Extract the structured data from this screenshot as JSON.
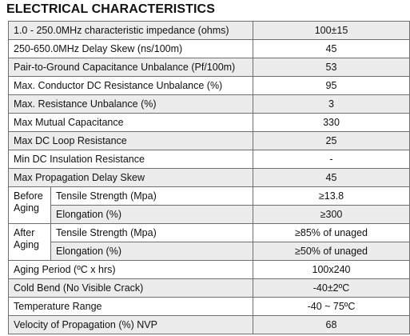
{
  "title": "ELECTRICAL CHARACTERISTICS",
  "rows": [
    {
      "label": "1.0 - 250.0MHz characteristic impedance (ohms)",
      "value": "100±15"
    },
    {
      "label": "250-650.0MHz Delay Skew (ns/100m)",
      "value": "45"
    },
    {
      "label": "Pair-to-Ground Capacitance Unbalance (Pf/100m)",
      "value": "53"
    },
    {
      "label": "Max. Conductor DC Resistance Unbalance (%)",
      "value": "95"
    },
    {
      "label": "Max. Resistance Unbalance (%)",
      "value": "3"
    },
    {
      "label": "Max Mutual Capacitance",
      "value": "330"
    },
    {
      "label": "Max DC Loop Resistance",
      "value": "25"
    },
    {
      "label": "Min DC Insulation Resistance",
      "value": "-"
    },
    {
      "label": "Max Propagation Delay Skew",
      "value": "45"
    }
  ],
  "before_aging": {
    "group_label": "Before Aging",
    "tensile": {
      "label": "Tensile Strength (Mpa)",
      "value": "≥13.8"
    },
    "elongation": {
      "label": "Elongation (%)",
      "value": "≥300"
    }
  },
  "after_aging": {
    "group_label": "After Aging",
    "tensile": {
      "label": "Tensile Strength (Mpa)",
      "value": "≥85% of unaged"
    },
    "elongation": {
      "label": "Elongation (%)",
      "value": "≥50% of unaged"
    }
  },
  "tail_rows": [
    {
      "label": "Aging Period (ºC x hrs)",
      "value": "100x240"
    },
    {
      "label": "Cold Bend (No Visible Crack)",
      "value": "-40±2ºC"
    },
    {
      "label": "Temperature Range",
      "value": "-40 ~ 75ºC"
    },
    {
      "label": "Velocity of Propagation (%) NVP",
      "value": "68"
    }
  ],
  "colors": {
    "shade": "#ececec",
    "border": "#6f6f6f"
  }
}
